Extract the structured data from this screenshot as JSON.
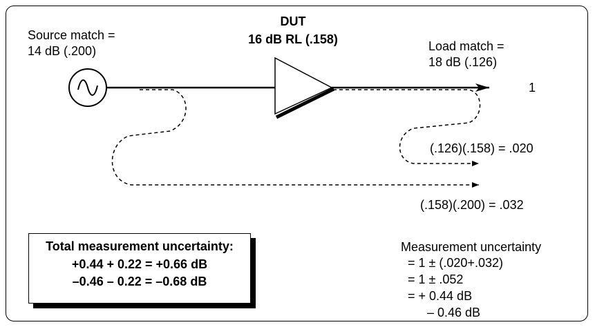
{
  "source": {
    "line1": "Source match =",
    "line2": "14 dB (.200)"
  },
  "dut": {
    "title": "DUT",
    "subtitle": "16 dB RL (.158)"
  },
  "load": {
    "line1": "Load match =",
    "line2": "18 dB (.126)"
  },
  "signal_label": "1",
  "reflection1": "(.126)(.158) = .020",
  "reflection2": "(.158)(.200) = .032",
  "total_box": {
    "title": "Total measurement uncertainty:",
    "line1": "+0.44 + 0.22  = +0.66 dB",
    "line2": "–0.46  – 0.22  =  –0.68 dB"
  },
  "measurement": {
    "title": "Measurement uncertainty",
    "line1": "= 1 ± (.020+.032)",
    "line2": "= 1 ± .052",
    "line3": "= + 0.44 dB",
    "line4": "– 0.46 dB"
  },
  "icons": {
    "source": "sine-source-icon",
    "amplifier": "amplifier-triangle-icon"
  }
}
